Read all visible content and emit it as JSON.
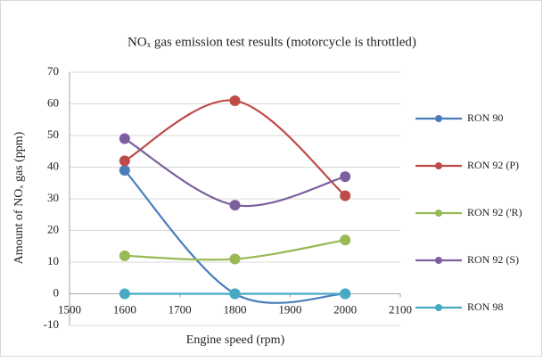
{
  "chart_data": {
    "type": "scatter",
    "title": "NOₓ gas emission test results (motorcycle is throttled)",
    "x_label": "Engine speed (rpm)",
    "y_label": "Amount of NOₓ gas (ppm)",
    "x": [
      1600,
      1800,
      2000
    ],
    "series": [
      {
        "name": "RON 90",
        "color": "#4a7ebb",
        "values": [
          39,
          0,
          0
        ]
      },
      {
        "name": "RON 92 (P)",
        "color": "#be4b48",
        "values": [
          42,
          61,
          31
        ]
      },
      {
        "name": "RON 92 ('R)",
        "color": "#98b954",
        "values": [
          12,
          11,
          17
        ]
      },
      {
        "name": "RON 92 (S)",
        "color": "#7d5fa0",
        "values": [
          49,
          28,
          37
        ]
      },
      {
        "name": "RON 98",
        "color": "#46aac5",
        "values": [
          0,
          0,
          0
        ]
      }
    ],
    "xlim": [
      1500,
      2100
    ],
    "xticks": [
      1500,
      1600,
      1700,
      1800,
      1900,
      2000,
      2100
    ],
    "ylim": [
      -10,
      70
    ],
    "yticks": [
      -10,
      0,
      10,
      20,
      30,
      40,
      50,
      60,
      70
    ],
    "grid": true,
    "smooth": true,
    "legend": "right"
  }
}
